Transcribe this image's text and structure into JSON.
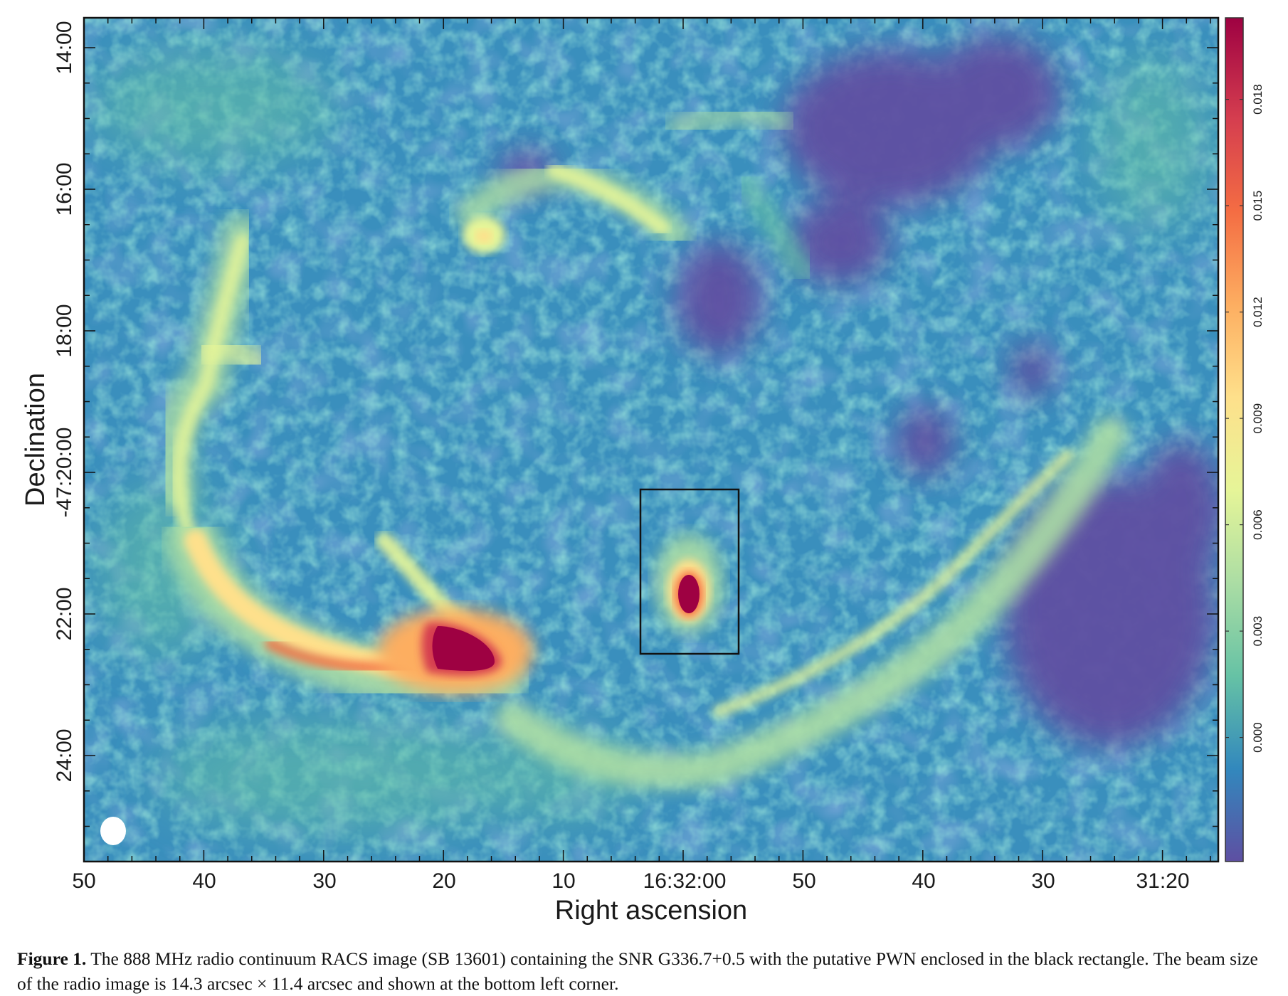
{
  "chart_data": {
    "type": "heatmap",
    "xlabel": "Right ascension",
    "ylabel": "Declination",
    "x_ticks": [
      "50",
      "40",
      "30",
      "20",
      "10",
      "16:32:00",
      "50",
      "40",
      "30",
      "31:20"
    ],
    "y_ticks": [
      "14:00",
      "16:00",
      "18:00",
      "-47:20:00",
      "22:00",
      "24:00"
    ],
    "colorbar": {
      "ticks": [
        "0.000",
        "0.003",
        "0.006",
        "0.009",
        "0.012",
        "0.015",
        "0.018"
      ],
      "tick_values": [
        0.0,
        0.003,
        0.006,
        0.009,
        0.012,
        0.015,
        0.018
      ],
      "range": [
        -0.0035,
        0.0203
      ],
      "colormap": "Spectral_r",
      "colors": [
        "#5e4fa2",
        "#3288bd",
        "#66c2a5",
        "#abdda4",
        "#e6f598",
        "#fee08b",
        "#fdae61",
        "#f46d43",
        "#d53e4f",
        "#9e0142"
      ]
    },
    "annotations": [
      "PWN enclosed in black rectangle",
      "beam ellipse shown at bottom left corner"
    ]
  },
  "caption": {
    "label": "Figure 1.",
    "text": " The 888 MHz radio continuum RACS image (SB 13601) containing the SNR G336.7+0.5 with the putative PWN enclosed in the black rectangle. The beam size of the radio image is 14.3 arcsec × 11.4 arcsec and shown at the bottom left corner."
  }
}
